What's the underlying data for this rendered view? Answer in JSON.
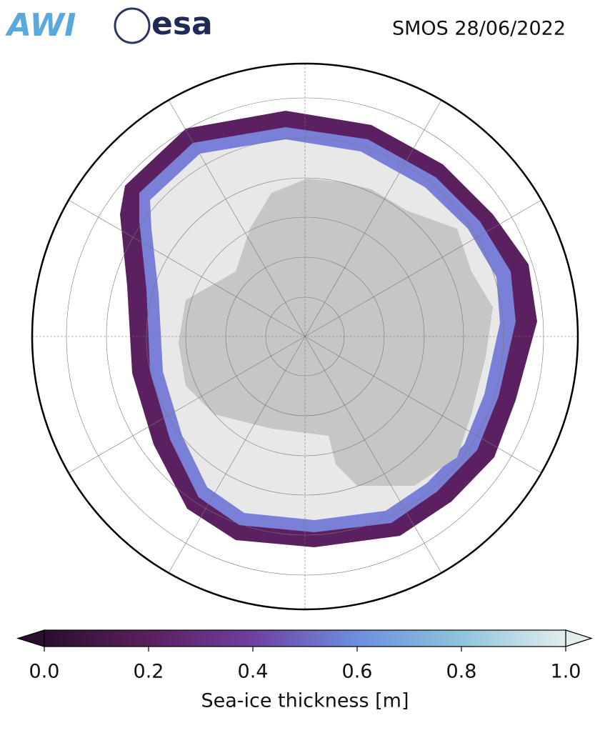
{
  "header": {
    "logos": [
      "AWI",
      "esa"
    ],
    "title": "SMOS 28/06/2022"
  },
  "colorbar": {
    "label": "Sea-ice thickness [m]",
    "range": [
      0,
      1
    ],
    "ticks": [
      {
        "value": 0,
        "label": "0.0"
      },
      0.2,
      0.4,
      0.6,
      0.8,
      {
        "value": 1,
        "label": "1.0"
      }
    ],
    "colors": [
      "#2a0f2e",
      "#5b1f5e",
      "#6f3fa0",
      "#6d8fe0",
      "#8ec4dc",
      "#e3eded"
    ]
  }
}
